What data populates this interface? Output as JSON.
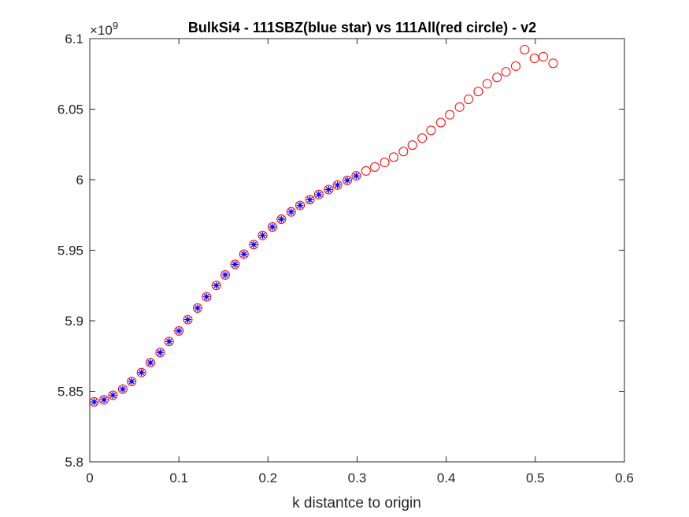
{
  "chart_data": {
    "type": "scatter",
    "title": "BulkSi4 - 111SBZ(blue star) vs 111All(red circle) - v2",
    "xlabel": "k distantce to origin",
    "ylabel": "",
    "y_exponent_base": "×10",
    "y_exponent_power": "9",
    "xlim": [
      0,
      0.6
    ],
    "ylim": [
      5.8,
      6.1
    ],
    "grid": false,
    "x_ticks": [
      0,
      0.1,
      0.2,
      0.3,
      0.4,
      0.5,
      0.6
    ],
    "x_tick_labels": [
      "0",
      "0.1",
      "0.2",
      "0.3",
      "0.4",
      "0.5",
      "0.6"
    ],
    "y_ticks": [
      5.8,
      5.85,
      5.9,
      5.95,
      6.0,
      6.05,
      6.1
    ],
    "y_tick_labels": [
      "5.8",
      "5.85",
      "5.9",
      "5.95",
      "6",
      "6.05",
      "6.1"
    ],
    "series": [
      {
        "marker": "circle",
        "color": "#ff0000",
        "x": [
          0.005,
          0.016,
          0.026,
          0.037,
          0.047,
          0.058,
          0.068,
          0.079,
          0.089,
          0.1,
          0.11,
          0.121,
          0.131,
          0.142,
          0.152,
          0.163,
          0.173,
          0.184,
          0.194,
          0.205,
          0.215,
          0.226,
          0.236,
          0.247,
          0.257,
          0.268,
          0.278,
          0.289,
          0.299,
          0.31,
          0.32,
          0.331,
          0.341,
          0.352,
          0.362,
          0.373,
          0.383,
          0.394,
          0.404,
          0.415,
          0.425,
          0.436,
          0.446,
          0.457,
          0.467,
          0.478,
          0.488,
          0.499,
          0.509,
          0.52
        ],
        "y": [
          5.8425,
          5.844,
          5.8472,
          5.8515,
          5.857,
          5.8633,
          5.8703,
          5.8775,
          5.8853,
          5.8928,
          5.9008,
          5.909,
          5.917,
          5.925,
          5.9325,
          5.94,
          5.9472,
          5.954,
          5.9605,
          5.9665,
          5.972,
          5.9772,
          5.9818,
          5.9858,
          5.9895,
          5.993,
          5.9962,
          5.9995,
          6.0027,
          6.0062,
          6.009,
          6.0122,
          6.016,
          6.02,
          6.0245,
          6.0295,
          6.035,
          6.0405,
          6.046,
          6.0515,
          6.057,
          6.0625,
          6.068,
          6.0725,
          6.0765,
          6.0805,
          6.0922,
          6.086,
          6.0872,
          6.0825
        ]
      },
      {
        "marker": "star",
        "color": "#0000ff",
        "x": [
          0.005,
          0.016,
          0.026,
          0.037,
          0.047,
          0.058,
          0.068,
          0.079,
          0.089,
          0.1,
          0.11,
          0.121,
          0.131,
          0.142,
          0.152,
          0.163,
          0.173,
          0.184,
          0.194,
          0.205,
          0.215,
          0.226,
          0.236,
          0.247,
          0.257,
          0.268,
          0.278,
          0.289,
          0.299
        ],
        "y": [
          5.8425,
          5.844,
          5.8472,
          5.8515,
          5.857,
          5.8633,
          5.8703,
          5.8775,
          5.8853,
          5.8928,
          5.9008,
          5.909,
          5.917,
          5.925,
          5.9325,
          5.94,
          5.9472,
          5.954,
          5.9605,
          5.9665,
          5.972,
          5.9772,
          5.9818,
          5.9858,
          5.9895,
          5.993,
          5.9962,
          5.9995,
          6.0027
        ]
      }
    ]
  }
}
